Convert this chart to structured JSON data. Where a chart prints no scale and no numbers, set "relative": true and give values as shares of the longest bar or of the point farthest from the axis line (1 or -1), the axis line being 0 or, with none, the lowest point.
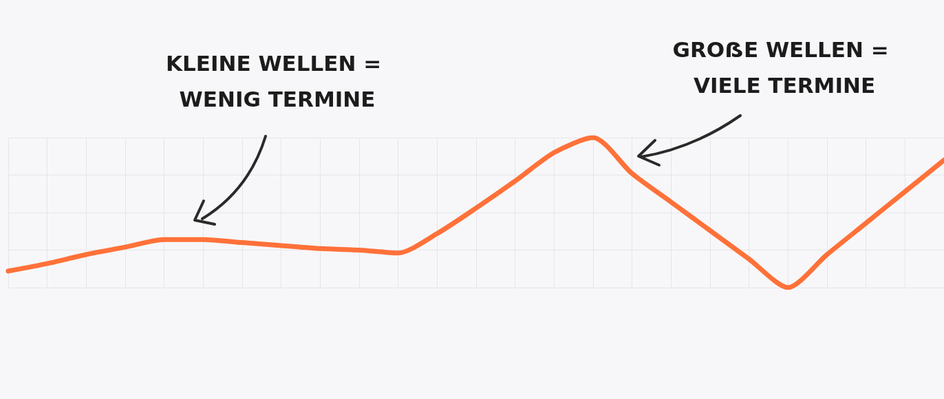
{
  "chart_data": {
    "type": "line",
    "relative": true,
    "grid": true,
    "marker": "none",
    "line_style": "solid",
    "categories": [
      null,
      null,
      null,
      null,
      null,
      null,
      null,
      null,
      null,
      null,
      null,
      null,
      null,
      null,
      null,
      null,
      null,
      null,
      null,
      null,
      null,
      null,
      null,
      null,
      null
    ],
    "series": [
      {
        "color": "#ff7139",
        "values": [
          0.11,
          0.16,
          0.22,
          0.27,
          0.32,
          0.32,
          0.3,
          0.28,
          0.26,
          0.25,
          0.23,
          0.36,
          0.53,
          0.71,
          0.9,
          1,
          0.76,
          0.57,
          0.38,
          0.19,
          0,
          0.22,
          0.43,
          0.64,
          0.85
        ]
      }
    ],
    "annotations": [
      "KLEINE WELLEN = WENIG TERMINE",
      "GROẞE WELLEN = VIELE TERMINE"
    ]
  }
}
